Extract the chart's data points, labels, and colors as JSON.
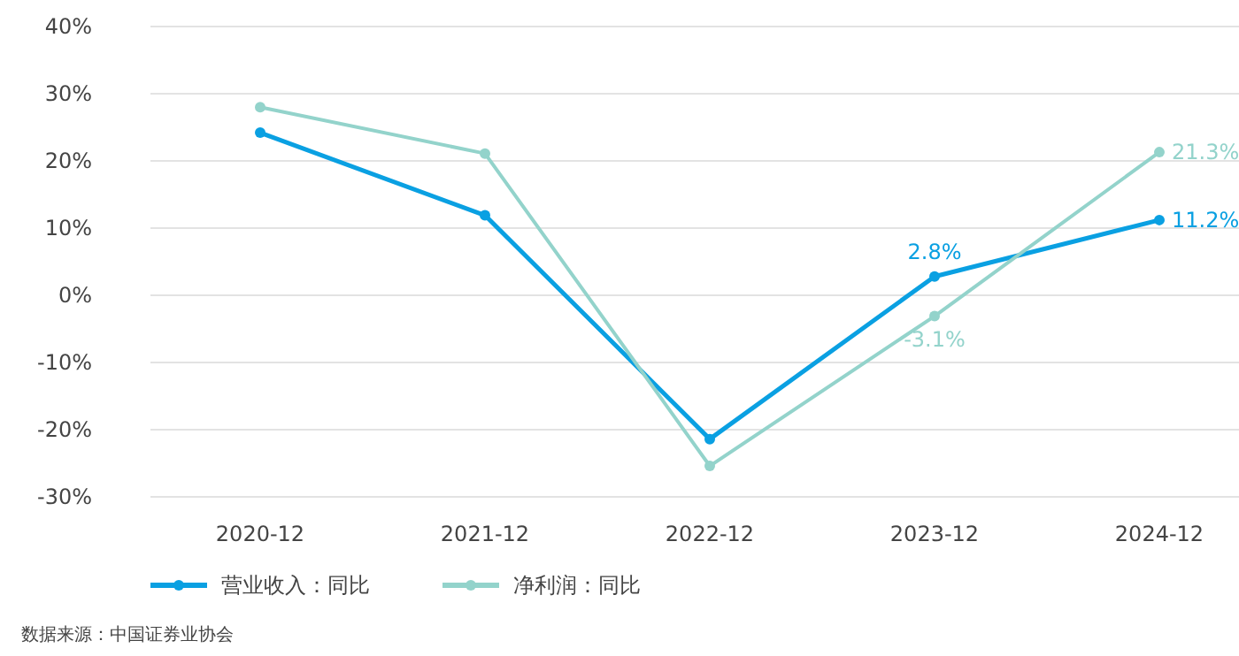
{
  "chart_data": {
    "type": "line",
    "categories": [
      "2020-12",
      "2021-12",
      "2022-12",
      "2023-12",
      "2024-12"
    ],
    "series": [
      {
        "name": "营业收入：同比",
        "color": "#0aa0e2",
        "values": [
          24.2,
          11.9,
          -21.4,
          2.8,
          11.2
        ],
        "value_labels": [
          null,
          null,
          null,
          "2.8%",
          "11.2%"
        ]
      },
      {
        "name": "净利润：同比",
        "color": "#93d3cb",
        "values": [
          28.0,
          21.1,
          -25.4,
          -3.1,
          21.3
        ],
        "value_labels": [
          null,
          null,
          null,
          "-3.1%",
          "21.3%"
        ]
      }
    ],
    "ylim": [
      -30,
      40
    ],
    "yticks": [
      {
        "value": -30,
        "label": "-30%"
      },
      {
        "value": -20,
        "label": "-20%"
      },
      {
        "value": -10,
        "label": "-10%"
      },
      {
        "value": 0,
        "label": "0%"
      },
      {
        "value": 10,
        "label": "10%"
      },
      {
        "value": 20,
        "label": "20%"
      },
      {
        "value": 30,
        "label": "30%"
      },
      {
        "value": 40,
        "label": "40%"
      }
    ],
    "grid": "y",
    "legend": "bottom left",
    "marker": "circle",
    "line_style": "solid",
    "annotations": [
      "数据来源：中国证券业协会"
    ]
  }
}
